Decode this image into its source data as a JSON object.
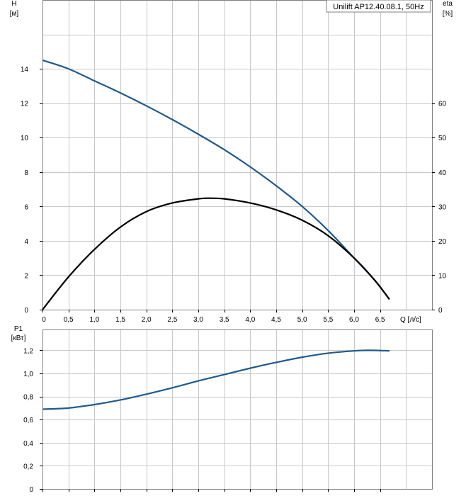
{
  "legend": "Unilift AP12.40.08.1, 50Hz",
  "colors": {
    "head": "#1f5a8c",
    "efficiency": "#000000",
    "power": "#1f5a8c",
    "grid": "#c8c8c8"
  },
  "chart_data": [
    {
      "type": "line",
      "x_ticks": [
        {
          "value": 0,
          "label": "0"
        },
        {
          "value": 0.5,
          "label": "0,5"
        },
        {
          "value": 1.0,
          "label": "1,0"
        },
        {
          "value": 1.5,
          "label": "1,5"
        },
        {
          "value": 2.0,
          "label": "2,0"
        },
        {
          "value": 2.5,
          "label": "2,5"
        },
        {
          "value": 3.0,
          "label": "3,0"
        },
        {
          "value": 3.5,
          "label": "3,5"
        },
        {
          "value": 4.0,
          "label": "4,0"
        },
        {
          "value": 4.5,
          "label": "4,5"
        },
        {
          "value": 5.0,
          "label": "5,0"
        },
        {
          "value": 5.5,
          "label": "5,5"
        },
        {
          "value": 6.0,
          "label": "6,0"
        },
        {
          "value": 6.5,
          "label": "6,5"
        }
      ],
      "xlabel": "Q [л/с]",
      "xlim": [
        0,
        7.5
      ],
      "ylabel_left": [
        "H",
        "[м]"
      ],
      "ylim_left": [
        0,
        18
      ],
      "y_ticks_left": [
        {
          "value": 0,
          "label": "0"
        },
        {
          "value": 2,
          "label": "2"
        },
        {
          "value": 4,
          "label": "4"
        },
        {
          "value": 6,
          "label": "6"
        },
        {
          "value": 8,
          "label": "8"
        },
        {
          "value": 10,
          "label": "10"
        },
        {
          "value": 12,
          "label": "12"
        },
        {
          "value": 14,
          "label": "14"
        }
      ],
      "ylabel_right": [
        "eta",
        "[%]"
      ],
      "ylim_right": [
        0,
        90
      ],
      "y_ticks_right": [
        {
          "value": 0,
          "label": "0"
        },
        {
          "value": 10,
          "label": "10"
        },
        {
          "value": 20,
          "label": "20"
        },
        {
          "value": 30,
          "label": "30"
        },
        {
          "value": 40,
          "label": "40"
        },
        {
          "value": 50,
          "label": "50"
        },
        {
          "value": 60,
          "label": "60"
        }
      ],
      "grid": true,
      "legend_position": "top-right",
      "series": [
        {
          "axis": "left",
          "x": [
            0,
            0.5,
            1.0,
            1.5,
            2.0,
            2.5,
            3.0,
            3.5,
            4.0,
            4.5,
            5.0,
            5.5,
            6.0,
            6.4,
            6.68
          ],
          "y": [
            14.5,
            14.0,
            13.3,
            12.6,
            11.85,
            11.05,
            10.2,
            9.3,
            8.3,
            7.2,
            6.0,
            4.6,
            3.0,
            1.7,
            0.6
          ]
        },
        {
          "axis": "right",
          "x": [
            0,
            0.5,
            1.0,
            1.5,
            2.0,
            2.5,
            3.0,
            3.2,
            3.5,
            4.0,
            4.5,
            5.0,
            5.5,
            6.0,
            6.4,
            6.68
          ],
          "y": [
            0,
            9.5,
            17.5,
            24,
            28.5,
            31,
            32.2,
            32.4,
            32.2,
            31,
            29,
            26,
            21.5,
            15,
            8.5,
            3
          ]
        }
      ]
    },
    {
      "type": "line",
      "x_ticks": [
        {
          "value": 0
        },
        {
          "value": 0.5
        },
        {
          "value": 1.0
        },
        {
          "value": 1.5
        },
        {
          "value": 2.0
        },
        {
          "value": 2.5
        },
        {
          "value": 3.0
        },
        {
          "value": 3.5
        },
        {
          "value": 4.0
        },
        {
          "value": 4.5
        },
        {
          "value": 5.0
        },
        {
          "value": 5.5
        },
        {
          "value": 6.0
        },
        {
          "value": 6.5
        }
      ],
      "xlim": [
        0,
        7.5
      ],
      "ylabel": [
        "P1",
        "[кВт]"
      ],
      "ylim": [
        0,
        1.38
      ],
      "y_ticks": [
        {
          "value": 0,
          "label": "0"
        },
        {
          "value": 0.2,
          "label": "0,2"
        },
        {
          "value": 0.4,
          "label": "0,4"
        },
        {
          "value": 0.6,
          "label": "0,6"
        },
        {
          "value": 0.8,
          "label": "0,8"
        },
        {
          "value": 1.0,
          "label": "1,0"
        },
        {
          "value": 1.2,
          "label": "1,2"
        }
      ],
      "grid": true,
      "series": [
        {
          "x": [
            0,
            0.5,
            1.0,
            1.5,
            2.0,
            2.5,
            3.0,
            3.5,
            4.0,
            4.5,
            5.0,
            5.5,
            6.0,
            6.3,
            6.68
          ],
          "y": [
            0.69,
            0.7,
            0.73,
            0.77,
            0.82,
            0.875,
            0.935,
            0.99,
            1.045,
            1.095,
            1.14,
            1.175,
            1.195,
            1.2,
            1.195
          ]
        }
      ]
    }
  ]
}
